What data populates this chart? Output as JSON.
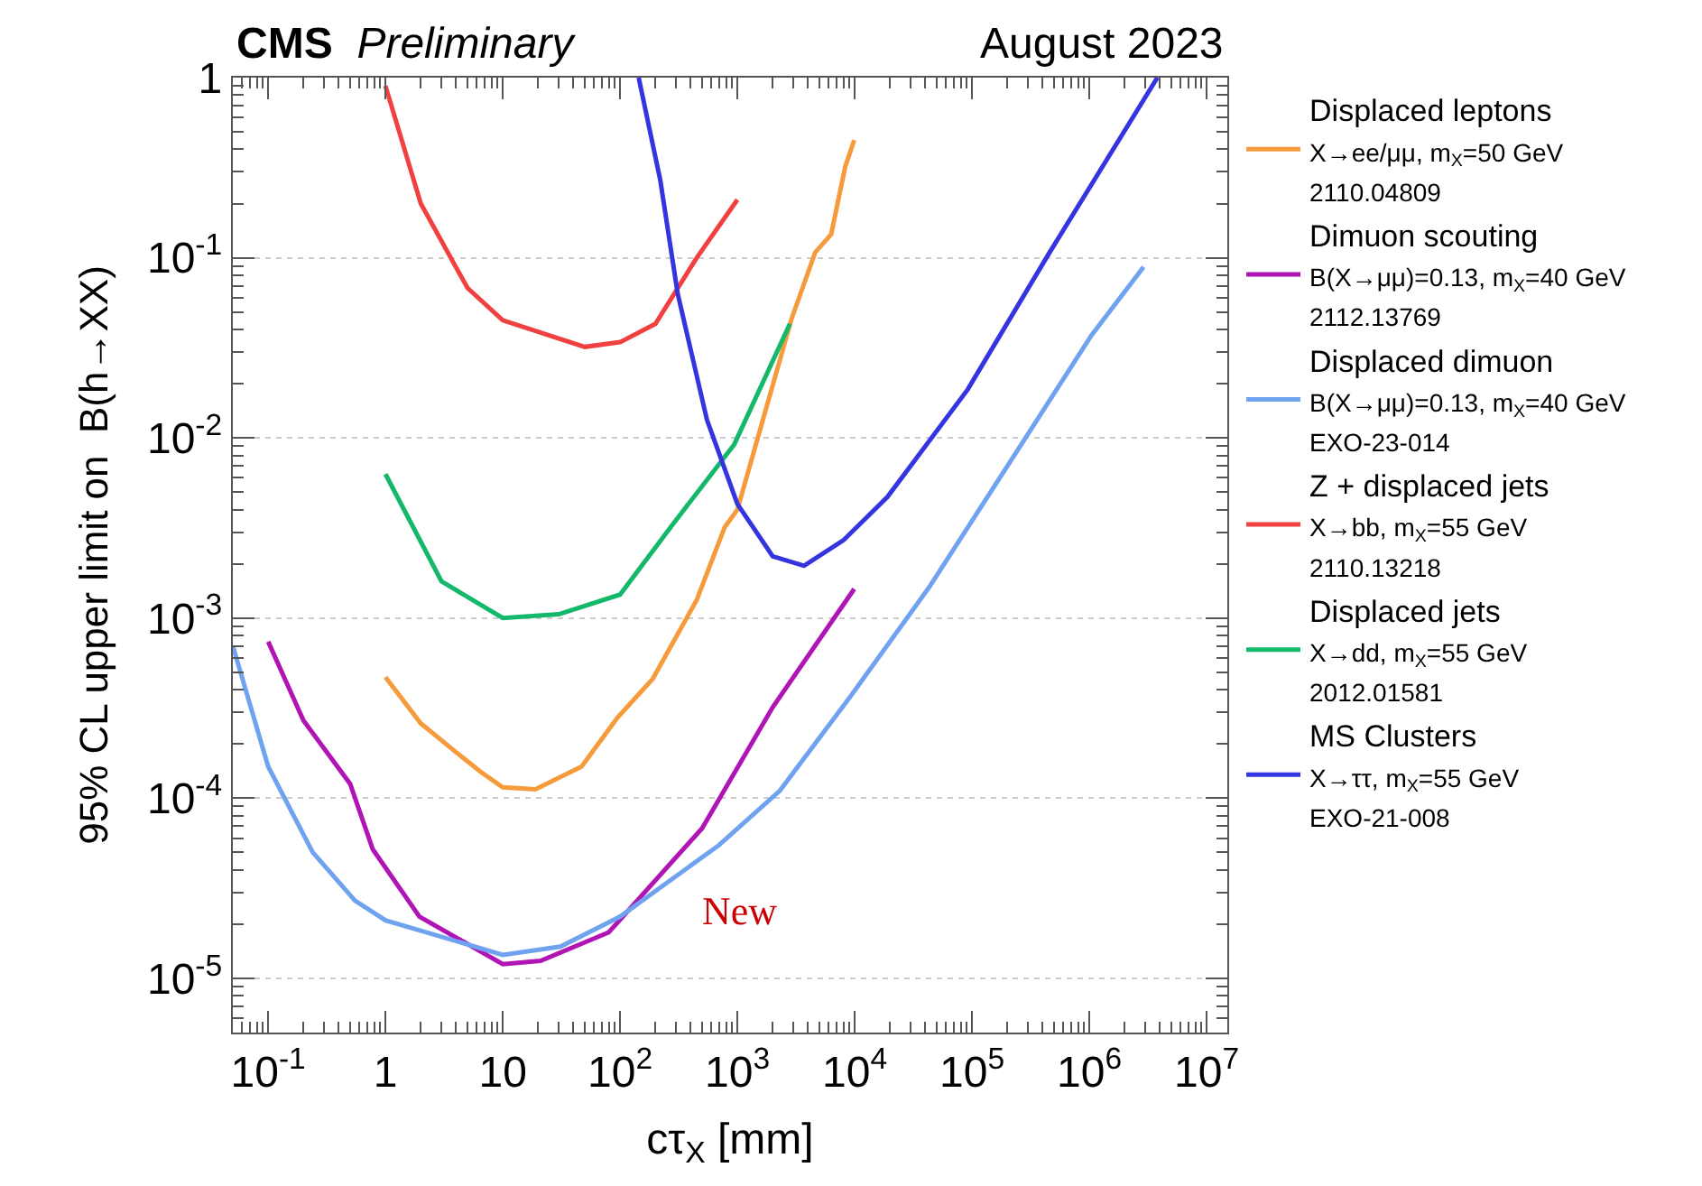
{
  "chart_data": {
    "type": "line",
    "title": "CMS Preliminary",
    "subtitle": "August 2023",
    "xlabel": "cτ$_{X}$ [mm]",
    "ylabel": "95% CL upper limit on  B(h→XX)",
    "log": "xy",
    "grid": "y",
    "legend": "right",
    "line_style": "solid",
    "marker": "none",
    "xlim": [
      0.05,
      15000000
    ],
    "ylim": [
      5e-06,
      1
    ],
    "xticks": [
      {
        "value": 0.1,
        "label": "10$^{-1}$"
      },
      1,
      10,
      {
        "value": 100,
        "label": "10$^{2}$"
      },
      {
        "value": 1000,
        "label": "10$^{3}$"
      },
      {
        "value": 10000,
        "label": "10$^{4}$"
      },
      {
        "value": 100000,
        "label": "10$^{5}$"
      },
      {
        "value": 1000000,
        "label": "10$^{6}$"
      },
      {
        "value": 10000000,
        "label": "10$^{7}$"
      }
    ],
    "yticks": [
      {
        "value": 1e-05,
        "label": "10$^{-5}$"
      },
      {
        "value": 0.0001,
        "label": "10$^{-4}$"
      },
      {
        "value": 0.001,
        "label": "10$^{-3}$"
      },
      {
        "value": 0.01,
        "label": "10$^{-2}$"
      },
      {
        "value": 0.1,
        "label": "10$^{-1}$"
      },
      1
    ],
    "annotations": [
      "New"
    ],
    "series": [
      {
        "name": "Displaced leptons\nX→ee/μμ, m$_{X}$=50 GeV\n2110.04809",
        "color": "#f59b3c",
        "x": [
          1,
          2,
          4,
          6.5,
          10,
          19,
          47,
          95,
          190,
          450,
          780,
          1000,
          2900,
          4600,
          6300,
          8300,
          9900
        ],
        "values": [
          0.00047,
          0.00026,
          0.00018,
          0.00014,
          0.000115,
          0.000112,
          0.00015,
          0.00028,
          0.00046,
          0.00126,
          0.0032,
          0.004,
          0.046,
          0.107,
          0.135,
          0.32,
          0.45
        ]
      },
      {
        "name": "Dimuon scouting\nB(X→μμ)=0.13, m$_{X}$=40 GeV\n2112.13769",
        "color": "#b014b4",
        "x": [
          0.1,
          0.2,
          0.5,
          0.78,
          1.95,
          10,
          21,
          80,
          500,
          2000,
          9900
        ],
        "values": [
          0.00074,
          0.00027,
          0.00012,
          5.2e-05,
          2.2e-05,
          1.2e-05,
          1.25e-05,
          1.8e-05,
          6.8e-05,
          0.00032,
          0.00145
        ]
      },
      {
        "name": "Displaced dimuon\nB(X→μμ)=0.13, m$_{X}$=40 GeV\nEXO-23-014",
        "color": "#6fa3f0",
        "x": [
          0.05,
          0.1,
          0.24,
          0.55,
          1,
          10,
          31,
          100,
          700,
          2300,
          9000,
          43000,
          300000,
          1040000,
          2900000
        ],
        "values": [
          0.0007,
          0.00015,
          5e-05,
          2.7e-05,
          2.1e-05,
          1.35e-05,
          1.5e-05,
          2.2e-05,
          5.5e-05,
          0.00011,
          0.00036,
          0.00148,
          0.0105,
          0.037,
          0.089
        ]
      },
      {
        "name": "Z + displaced jets\nX→bb, m$_{X}$=55 GeV\n2110.13218",
        "color": "#f04040",
        "x": [
          1,
          2,
          5,
          10,
          50,
          100,
          200,
          450,
          1000
        ],
        "values": [
          0.9,
          0.2,
          0.068,
          0.045,
          0.032,
          0.034,
          0.043,
          0.1,
          0.21
        ]
      },
      {
        "name": "Displaced jets\nX→dd, m$_{X}$=55 GeV\n2012.01581",
        "color": "#14b86b",
        "x": [
          1,
          3,
          10,
          30,
          100,
          270,
          940,
          2800
        ],
        "values": [
          0.0063,
          0.0016,
          0.001,
          0.00105,
          0.00135,
          0.0032,
          0.0092,
          0.043
        ]
      },
      {
        "name": "MS Clusters\nX→ττ, m$_{X}$=55 GeV\nEXO-21-008",
        "color": "#3434e0",
        "x": [
          144,
          220,
          310,
          550,
          1000,
          2000,
          3700,
          8000,
          19000,
          92000,
          450000,
          3800000
        ],
        "values": [
          1,
          0.27,
          0.063,
          0.0126,
          0.0043,
          0.0022,
          0.00195,
          0.0027,
          0.0047,
          0.0186,
          0.105,
          1
        ]
      }
    ]
  }
}
